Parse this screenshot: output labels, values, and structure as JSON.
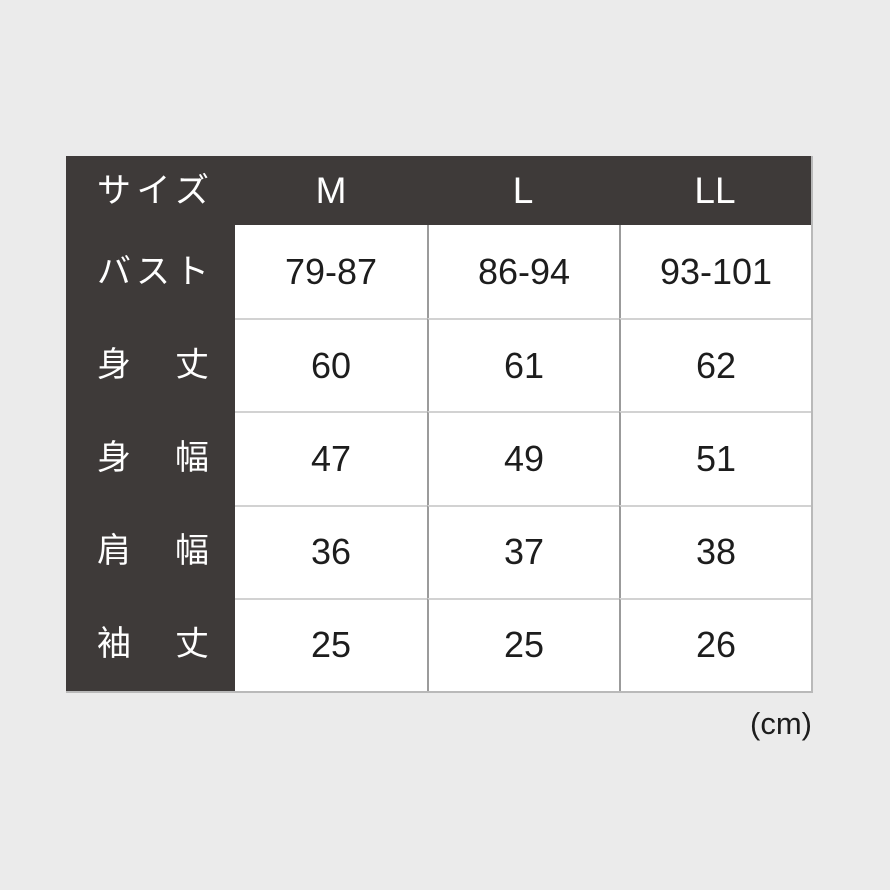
{
  "colors": {
    "background": "#ebebeb",
    "header_bg": "#3e3a39",
    "header_text": "#ffffff",
    "cell_bg": "#ffffff",
    "cell_text": "#1d1d1d",
    "v_border": "#9b9b9b",
    "h_border": "#d2d2d2",
    "outer_border": "#b9b9b9"
  },
  "unit_note": "(cm)",
  "table": {
    "header": {
      "label": "サイズ",
      "columns": [
        "M",
        "L",
        "LL"
      ]
    },
    "rows": [
      {
        "label": "バスト",
        "values": [
          "79-87",
          "86-94",
          "93-101"
        ]
      },
      {
        "label": "身丈",
        "values": [
          "60",
          "61",
          "62"
        ]
      },
      {
        "label": "身幅",
        "values": [
          "47",
          "49",
          "51"
        ]
      },
      {
        "label": "肩幅",
        "values": [
          "36",
          "37",
          "38"
        ]
      },
      {
        "label": "袖丈",
        "values": [
          "25",
          "25",
          "26"
        ]
      }
    ]
  }
}
